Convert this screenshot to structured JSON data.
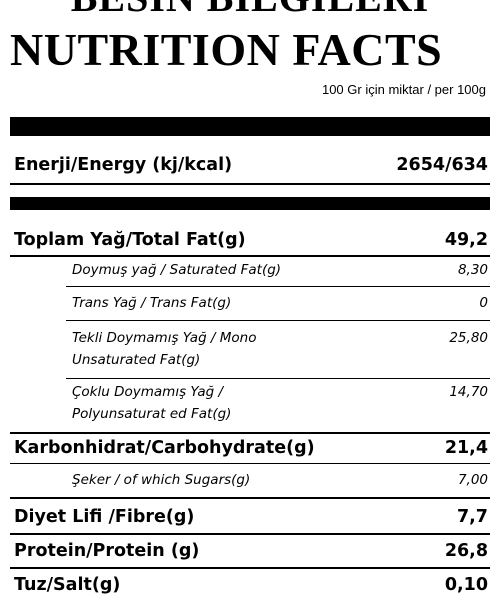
{
  "header": {
    "cut_title": "BESİN BİLGİLERİ",
    "title": "NUTRITION FACTS",
    "per_amount": "100 Gr için miktar / per 100g"
  },
  "energy": {
    "label": "Enerji/Energy (kj/kcal)",
    "value": "2654/634"
  },
  "nutrients": {
    "total_fat": {
      "label": "Toplam Yağ/Total Fat(g)",
      "value": "49,2"
    },
    "saturated_fat": {
      "label": "Doymuş yağ / Saturated Fat(g)",
      "value": "8,30"
    },
    "trans_fat": {
      "label": "Trans Yağ / Trans Fat(g)",
      "value": "0"
    },
    "mono_fat": {
      "label": "Tekli Doymamış Yağ / Mono\nUnsaturated Fat(g)",
      "value": "25,80"
    },
    "poly_fat": {
      "label": "Çoklu Doymamış Yağ /\nPolyunsaturat ed Fat(g)",
      "value": "14,70"
    },
    "carbohydrate": {
      "label": "Karbonhidrat/Carbohydrate(g)",
      "value": "21,4"
    },
    "sugars": {
      "label": "Şeker / of which Sugars(g)",
      "value": "7,00"
    },
    "fibre": {
      "label": "Diyet Lifi /Fibre(g)",
      "value": "7,7"
    },
    "protein": {
      "label": "Protein/Protein (g)",
      "value": "26,8"
    },
    "salt": {
      "label": "Tuz/Salt(g)",
      "value": "0,10"
    }
  }
}
